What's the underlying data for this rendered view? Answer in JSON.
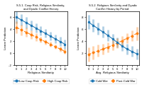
{
  "chart_data": [
    {
      "type": "line",
      "title": "S.5.1. Coup Risk, Religious Similarity,\nand Dyadic Conflict History",
      "x_label": "Religious Similarity",
      "y_label": "Linear Prediction",
      "x": [
        0,
        1,
        2,
        3,
        4,
        5,
        6,
        7,
        8,
        9,
        10
      ],
      "xlim": [
        -0.5,
        10.5
      ],
      "xticks": [
        0,
        1,
        2,
        3,
        4,
        5,
        6,
        7,
        8,
        9,
        10
      ],
      "ylim": [
        -0.2,
        0.7
      ],
      "yticks": [
        {
          "value": -0.2,
          "label": "-.2"
        },
        0,
        {
          "value": 0.2,
          "label": ".2"
        },
        {
          "value": 0.4,
          "label": ".4"
        },
        {
          "value": 0.6,
          "label": ".6"
        }
      ],
      "grid": false,
      "legend": "lower center",
      "series": [
        {
          "name": "Low Coup Risk",
          "marker": "circle",
          "line_style": "solid",
          "values": [
            0.6,
            0.555,
            0.51,
            0.465,
            0.42,
            0.375,
            0.33,
            0.285,
            0.24,
            0.195,
            0.15
          ],
          "ci_low": [
            0.5,
            0.46,
            0.42,
            0.38,
            0.34,
            0.3,
            0.26,
            0.215,
            0.17,
            0.12,
            0.07
          ],
          "ci_high": [
            0.7,
            0.65,
            0.6,
            0.55,
            0.5,
            0.45,
            0.4,
            0.355,
            0.31,
            0.27,
            0.23
          ]
        },
        {
          "name": "High Coup Risk",
          "marker": "diamond",
          "line_style": "dashed",
          "values": [
            0.43,
            0.39,
            0.35,
            0.31,
            0.27,
            0.23,
            0.19,
            0.15,
            0.11,
            0.07,
            0.03
          ],
          "ci_low": [
            0.33,
            0.3,
            0.27,
            0.24,
            0.21,
            0.18,
            0.15,
            0.11,
            0.07,
            0.03,
            -0.01
          ],
          "ci_high": [
            0.53,
            0.48,
            0.43,
            0.38,
            0.33,
            0.28,
            0.23,
            0.19,
            0.15,
            0.11,
            0.07
          ]
        }
      ]
    },
    {
      "type": "line",
      "title": "S.5.2. Religious Similarity and Dyadic\nConflict History by Period",
      "x_label": "Avg. Religious Similarity",
      "y_label": "Linear Prediction",
      "x": [
        0,
        1,
        2,
        3,
        4,
        5,
        6,
        7,
        8,
        9,
        10
      ],
      "xlim": [
        -0.5,
        10.5
      ],
      "xticks": [
        0,
        1,
        2,
        3,
        4,
        5,
        6,
        7,
        8,
        9,
        10
      ],
      "ylim": [
        0.0,
        0.9
      ],
      "yticks": [
        {
          "value": 0.2,
          "label": ".2"
        },
        {
          "value": 0.4,
          "label": ".4"
        },
        {
          "value": 0.6,
          "label": ".6"
        },
        {
          "value": 0.8,
          "label": ".8"
        }
      ],
      "grid": false,
      "legend": "lower center",
      "series": [
        {
          "name": "Cold War",
          "marker": "circle",
          "line_style": "solid",
          "values": [
            0.72,
            0.665,
            0.61,
            0.555,
            0.5,
            0.44,
            0.38,
            0.32,
            0.27,
            0.23,
            0.19
          ],
          "ci_low": [
            0.6,
            0.555,
            0.51,
            0.46,
            0.41,
            0.355,
            0.3,
            0.24,
            0.18,
            0.14,
            0.1
          ],
          "ci_high": [
            0.84,
            0.775,
            0.71,
            0.65,
            0.59,
            0.525,
            0.46,
            0.4,
            0.36,
            0.32,
            0.28
          ]
        },
        {
          "name": "Post-Cold War",
          "marker": "diamond",
          "line_style": "dashed",
          "values": [
            0.18,
            0.21,
            0.24,
            0.27,
            0.3,
            0.335,
            0.37,
            0.41,
            0.45,
            0.49,
            0.53
          ],
          "ci_low": [
            0.06,
            0.1,
            0.14,
            0.18,
            0.22,
            0.255,
            0.29,
            0.33,
            0.37,
            0.4,
            0.42
          ],
          "ci_high": [
            0.3,
            0.32,
            0.34,
            0.36,
            0.38,
            0.415,
            0.45,
            0.49,
            0.53,
            0.58,
            0.64
          ]
        }
      ]
    }
  ]
}
